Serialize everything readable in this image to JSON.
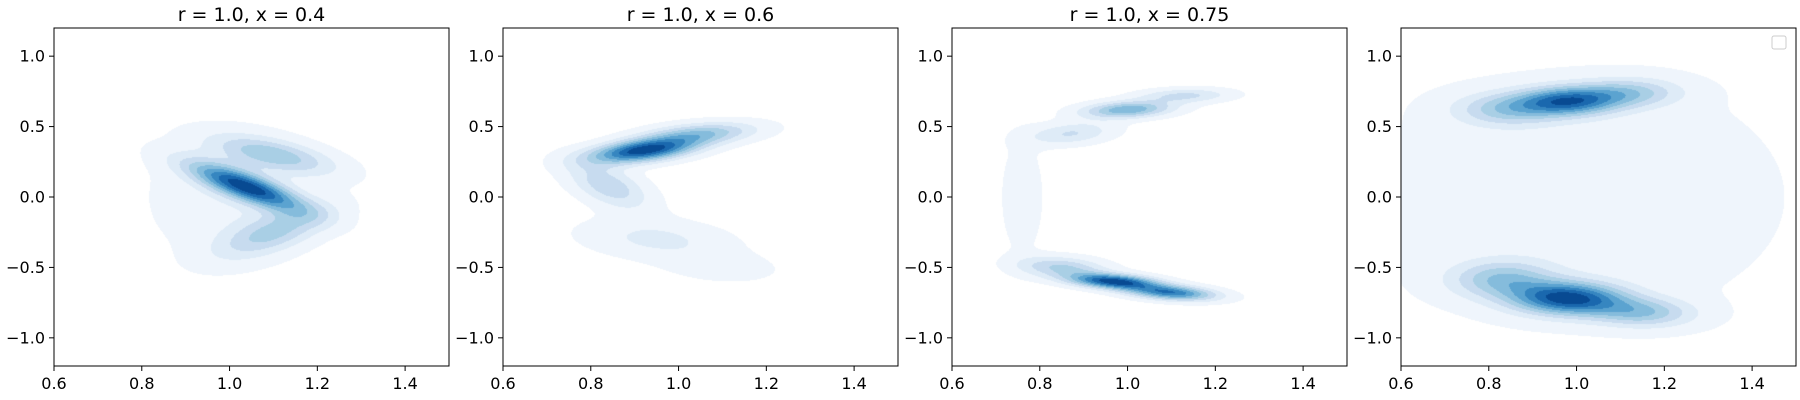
{
  "chart_data": [
    {
      "type": "density-contour",
      "title": "r = 1.0, x = 0.4",
      "xlabel": "",
      "ylabel": "",
      "xlim": [
        0.6,
        1.5
      ],
      "ylim": [
        -1.2,
        1.2
      ],
      "xticks": [
        "0.6",
        "0.8",
        "1.0",
        "1.2",
        "1.4"
      ],
      "yticks": [
        "−1.0",
        "−0.5",
        "0.0",
        "0.5",
        "1.0"
      ],
      "legend": false,
      "colormap": "Blues",
      "modes": [
        {
          "cx": 1.04,
          "cy": 0.07,
          "sx": 0.045,
          "sy": 0.14,
          "rot": 35,
          "w": 1.0
        },
        {
          "cx": 1.1,
          "cy": 0.3,
          "sx": 0.06,
          "sy": 0.12,
          "rot": 45,
          "w": 0.45
        },
        {
          "cx": 1.1,
          "cy": -0.25,
          "sx": 0.06,
          "sy": 0.14,
          "rot": -30,
          "w": 0.4
        },
        {
          "cx": 1.0,
          "cy": 0.0,
          "sx": 0.13,
          "sy": 0.32,
          "rot": 0,
          "w": 0.12
        }
      ]
    },
    {
      "type": "density-contour",
      "title": "r = 1.0, x = 0.6",
      "xlabel": "",
      "ylabel": "",
      "xlim": [
        0.6,
        1.5
      ],
      "ylim": [
        -1.2,
        1.2
      ],
      "xticks": [
        "0.6",
        "0.8",
        "1.0",
        "1.2",
        "1.4"
      ],
      "yticks": [
        "−1.0",
        "−0.5",
        "0.0",
        "0.5",
        "1.0"
      ],
      "legend": false,
      "colormap": "Blues",
      "modes": [
        {
          "cx": 0.92,
          "cy": 0.33,
          "sx": 0.09,
          "sy": 0.05,
          "rot": 28,
          "w": 1.0
        },
        {
          "cx": 1.05,
          "cy": 0.45,
          "sx": 0.09,
          "sy": 0.05,
          "rot": 18,
          "w": 0.45
        },
        {
          "cx": 0.84,
          "cy": 0.08,
          "sx": 0.05,
          "sy": 0.12,
          "rot": 20,
          "w": 0.35
        },
        {
          "cx": 0.95,
          "cy": -0.3,
          "sx": 0.12,
          "sy": 0.09,
          "rot": -30,
          "w": 0.18
        },
        {
          "cx": 1.1,
          "cy": -0.5,
          "sx": 0.09,
          "sy": 0.07,
          "rot": -25,
          "w": 0.1
        }
      ]
    },
    {
      "type": "density-contour",
      "title": "r = 1.0, x = 0.75",
      "xlabel": "",
      "ylabel": "",
      "xlim": [
        0.6,
        1.5
      ],
      "ylim": [
        -1.2,
        1.2
      ],
      "xticks": [
        "0.6",
        "0.8",
        "1.0",
        "1.2",
        "1.4"
      ],
      "yticks": [
        "−1.0",
        "−0.5",
        "0.0",
        "0.5",
        "1.0"
      ],
      "legend": false,
      "colormap": "Blues",
      "modes": [
        {
          "cx": 0.97,
          "cy": -0.6,
          "sx": 0.07,
          "sy": 0.035,
          "rot": -14,
          "w": 1.0
        },
        {
          "cx": 1.1,
          "cy": -0.68,
          "sx": 0.07,
          "sy": 0.035,
          "rot": -14,
          "w": 0.8
        },
        {
          "cx": 0.85,
          "cy": -0.5,
          "sx": 0.07,
          "sy": 0.05,
          "rot": -20,
          "w": 0.4
        },
        {
          "cx": 1.0,
          "cy": 0.62,
          "sx": 0.07,
          "sy": 0.04,
          "rot": 12,
          "w": 0.6
        },
        {
          "cx": 0.87,
          "cy": 0.45,
          "sx": 0.07,
          "sy": 0.05,
          "rot": 30,
          "w": 0.28
        },
        {
          "cx": 1.13,
          "cy": 0.72,
          "sx": 0.07,
          "sy": 0.035,
          "rot": 5,
          "w": 0.3
        },
        {
          "cx": 0.76,
          "cy": 0.0,
          "sx": 0.035,
          "sy": 0.3,
          "rot": 0,
          "w": 0.1
        }
      ]
    },
    {
      "type": "density-contour",
      "title": "",
      "xlabel": "",
      "ylabel": "",
      "xlim": [
        0.6,
        1.5
      ],
      "ylim": [
        -1.2,
        1.2
      ],
      "xticks": [
        "0.6",
        "0.8",
        "1.0",
        "1.2",
        "1.4"
      ],
      "yticks": [
        "−1.0",
        "−0.5",
        "0.0",
        "0.5",
        "1.0"
      ],
      "legend": true,
      "legend_position": "top-right",
      "colormap": "Blues",
      "modes": [
        {
          "cx": 0.98,
          "cy": -0.72,
          "sx": 0.09,
          "sy": 0.08,
          "rot": -15,
          "w": 1.0
        },
        {
          "cx": 1.15,
          "cy": -0.82,
          "sx": 0.08,
          "sy": 0.07,
          "rot": -15,
          "w": 0.45
        },
        {
          "cx": 0.83,
          "cy": -0.58,
          "sx": 0.08,
          "sy": 0.09,
          "rot": -10,
          "w": 0.45
        },
        {
          "cx": 0.98,
          "cy": 0.68,
          "sx": 0.08,
          "sy": 0.07,
          "rot": 10,
          "w": 0.85
        },
        {
          "cx": 1.12,
          "cy": 0.74,
          "sx": 0.08,
          "sy": 0.07,
          "rot": 5,
          "w": 0.4
        },
        {
          "cx": 0.84,
          "cy": 0.62,
          "sx": 0.08,
          "sy": 0.08,
          "rot": 10,
          "w": 0.4
        },
        {
          "cx": 1.0,
          "cy": 0.0,
          "sx": 0.35,
          "sy": 0.65,
          "rot": 0,
          "w": 0.11
        }
      ]
    }
  ]
}
